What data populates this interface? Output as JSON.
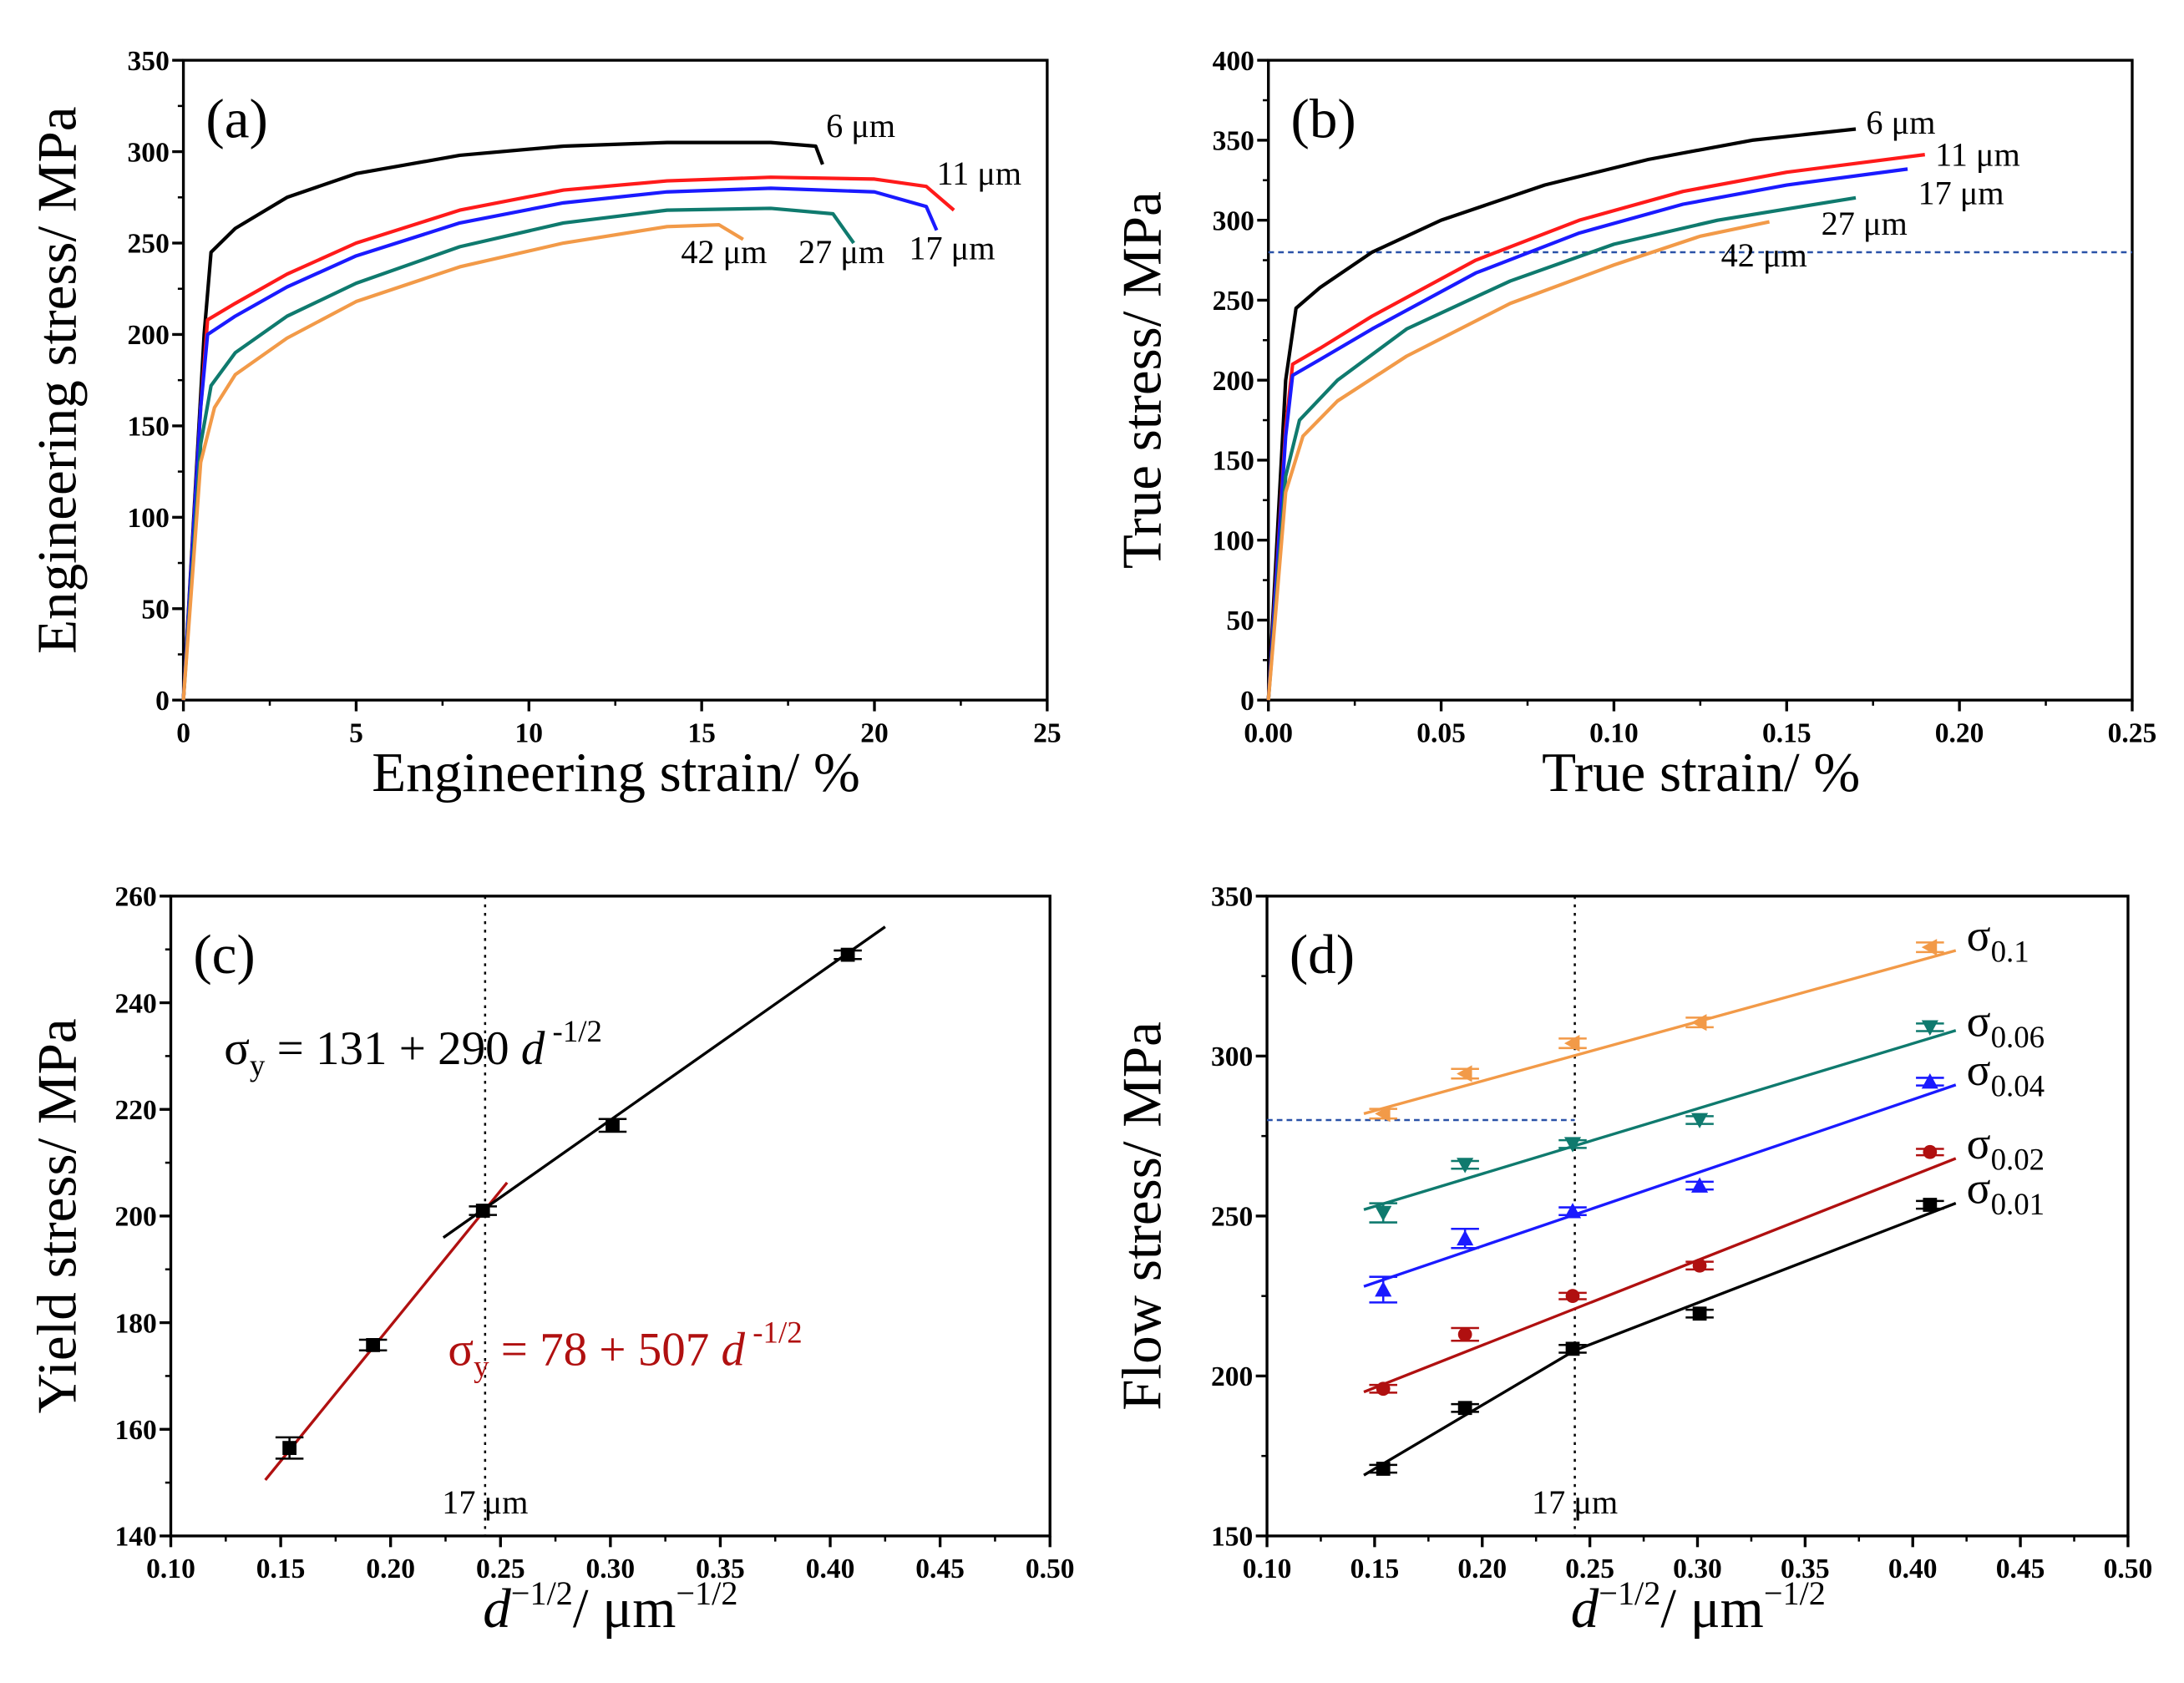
{
  "chart_data": [
    {
      "id": "a",
      "type": "line",
      "panel_label": "(a)",
      "xlabel": "Engineering strain/ %",
      "ylabel": "Engineering stress/ MPa",
      "xlim": [
        0,
        25
      ],
      "ylim": [
        0,
        350
      ],
      "xticks": [
        0,
        5,
        10,
        15,
        20,
        25
      ],
      "yticks": [
        0,
        50,
        100,
        150,
        200,
        250,
        300,
        350
      ],
      "xtick_fmt": 0,
      "series": [
        {
          "name": "6 μm",
          "color": "#000000",
          "points": [
            [
              0,
              0
            ],
            [
              0.6,
              200
            ],
            [
              0.8,
              245
            ],
            [
              1.5,
              258
            ],
            [
              3,
              275
            ],
            [
              5,
              288
            ],
            [
              8,
              298
            ],
            [
              11,
              303
            ],
            [
              14,
              305
            ],
            [
              17,
              305
            ],
            [
              18.3,
              303
            ],
            [
              18.5,
              293
            ]
          ]
        },
        {
          "name": "11 μm",
          "color": "#ff1a1a",
          "points": [
            [
              0,
              0
            ],
            [
              0.5,
              160
            ],
            [
              0.7,
              208
            ],
            [
              1.5,
              217
            ],
            [
              3,
              233
            ],
            [
              5,
              250
            ],
            [
              8,
              268
            ],
            [
              11,
              279
            ],
            [
              14,
              284
            ],
            [
              17,
              286
            ],
            [
              20,
              285
            ],
            [
              21.5,
              281
            ],
            [
              22.3,
              268
            ]
          ]
        },
        {
          "name": "17 μm",
          "color": "#1a1aff",
          "points": [
            [
              0,
              0
            ],
            [
              0.5,
              160
            ],
            [
              0.7,
              200
            ],
            [
              1.5,
              210
            ],
            [
              3,
              226
            ],
            [
              5,
              243
            ],
            [
              8,
              261
            ],
            [
              11,
              272
            ],
            [
              14,
              278
            ],
            [
              17,
              280
            ],
            [
              20,
              278
            ],
            [
              21.5,
              270
            ],
            [
              21.8,
              257
            ]
          ]
        },
        {
          "name": "27 μm",
          "color": "#0f7a6e",
          "points": [
            [
              0,
              0
            ],
            [
              0.5,
              140
            ],
            [
              0.8,
              172
            ],
            [
              1.5,
              190
            ],
            [
              3,
              210
            ],
            [
              5,
              228
            ],
            [
              8,
              248
            ],
            [
              11,
              261
            ],
            [
              14,
              268
            ],
            [
              17,
              269
            ],
            [
              18.8,
              266
            ],
            [
              19.4,
              250
            ]
          ]
        },
        {
          "name": "42 μm",
          "color": "#f29a48",
          "points": [
            [
              0,
              0
            ],
            [
              0.5,
              130
            ],
            [
              0.9,
              160
            ],
            [
              1.5,
              178
            ],
            [
              3,
              198
            ],
            [
              5,
              218
            ],
            [
              8,
              237
            ],
            [
              11,
              250
            ],
            [
              14,
              259
            ],
            [
              15.5,
              260
            ],
            [
              16.2,
              252
            ]
          ]
        }
      ],
      "annotations": [
        {
          "text": "6 μm",
          "x": 18.6,
          "y": 308
        },
        {
          "text": "11 μm",
          "x": 21.8,
          "y": 282
        },
        {
          "text": "17 μm",
          "x": 21.0,
          "y": 241
        },
        {
          "text": "27 μm",
          "x": 17.8,
          "y": 239
        },
        {
          "text": "42 μm",
          "x": 14.4,
          "y": 239
        }
      ]
    },
    {
      "id": "b",
      "type": "line",
      "panel_label": "(b)",
      "xlabel": "True strain/ %",
      "ylabel": "True stress/ MPa",
      "xlim": [
        0,
        0.25
      ],
      "ylim": [
        0,
        400
      ],
      "xticks": [
        0,
        0.05,
        0.1,
        0.15,
        0.2,
        0.25
      ],
      "yticks": [
        0,
        50,
        100,
        150,
        200,
        250,
        300,
        350,
        400
      ],
      "xtick_fmt": 2,
      "hline": 280,
      "series": [
        {
          "name": "6 μm",
          "color": "#000000",
          "points": [
            [
              0,
              0
            ],
            [
              0.005,
              200
            ],
            [
              0.008,
              245
            ],
            [
              0.015,
              258
            ],
            [
              0.03,
              280
            ],
            [
              0.05,
              300
            ],
            [
              0.08,
              322
            ],
            [
              0.11,
              338
            ],
            [
              0.14,
              350
            ],
            [
              0.17,
              357
            ]
          ]
        },
        {
          "name": "11 μm",
          "color": "#ff1a1a",
          "points": [
            [
              0,
              0
            ],
            [
              0.005,
              170
            ],
            [
              0.007,
              210
            ],
            [
              0.015,
              220
            ],
            [
              0.03,
              240
            ],
            [
              0.06,
              275
            ],
            [
              0.09,
              300
            ],
            [
              0.12,
              318
            ],
            [
              0.15,
              330
            ],
            [
              0.19,
              341
            ]
          ]
        },
        {
          "name": "17 μm",
          "color": "#1a1aff",
          "points": [
            [
              0,
              0
            ],
            [
              0.005,
              165
            ],
            [
              0.007,
              203
            ],
            [
              0.015,
              213
            ],
            [
              0.03,
              232
            ],
            [
              0.06,
              267
            ],
            [
              0.09,
              292
            ],
            [
              0.12,
              310
            ],
            [
              0.15,
              322
            ],
            [
              0.185,
              332
            ]
          ]
        },
        {
          "name": "27 μm",
          "color": "#0f7a6e",
          "points": [
            [
              0,
              0
            ],
            [
              0.005,
              140
            ],
            [
              0.009,
              175
            ],
            [
              0.02,
              200
            ],
            [
              0.04,
              232
            ],
            [
              0.07,
              262
            ],
            [
              0.1,
              285
            ],
            [
              0.13,
              300
            ],
            [
              0.17,
              314
            ]
          ]
        },
        {
          "name": "42 μm",
          "color": "#f29a48",
          "points": [
            [
              0,
              0
            ],
            [
              0.005,
              130
            ],
            [
              0.01,
              165
            ],
            [
              0.02,
              187
            ],
            [
              0.04,
              215
            ],
            [
              0.07,
              248
            ],
            [
              0.1,
              272
            ],
            [
              0.125,
              290
            ],
            [
              0.145,
              299
            ]
          ]
        }
      ],
      "annotations": [
        {
          "text": "6 μm",
          "x": 0.173,
          "y": 354
        },
        {
          "text": "11 μm",
          "x": 0.193,
          "y": 334
        },
        {
          "text": "17 μm",
          "x": 0.188,
          "y": 310
        },
        {
          "text": "27 μm",
          "x": 0.16,
          "y": 291
        },
        {
          "text": "42 μm",
          "x": 0.131,
          "y": 271
        }
      ]
    },
    {
      "id": "c",
      "type": "scatter",
      "panel_label": "(c)",
      "xlabel_parts": [
        "d",
        "−1/2",
        "/ μm",
        "−1/2"
      ],
      "ylabel": "Yield stress/ MPa",
      "xlim": [
        0.1,
        0.5
      ],
      "ylim": [
        140,
        260
      ],
      "xticks": [
        0.1,
        0.15,
        0.2,
        0.25,
        0.3,
        0.35,
        0.4,
        0.45,
        0.5
      ],
      "yticks": [
        140,
        160,
        180,
        200,
        220,
        240,
        260
      ],
      "xtick_fmt": 2,
      "vline": 0.243,
      "vline_label": "17 μm",
      "series": [
        {
          "name": "yield",
          "color": "#000000",
          "marker": "square",
          "x": [
            0.154,
            0.192,
            0.242,
            0.301,
            0.408
          ],
          "y": [
            156.5,
            175.8,
            201,
            217,
            249
          ],
          "err": [
            2,
            1,
            0.8,
            1.2,
            0.8
          ]
        }
      ],
      "fits": [
        {
          "color": "#b01010",
          "x": [
            0.143,
            0.253
          ],
          "intercept": 78,
          "slope": 507
        },
        {
          "color": "#000000",
          "x": [
            0.224,
            0.425
          ],
          "intercept": 131,
          "slope": 290
        }
      ],
      "equations": [
        {
          "sigma": "σ",
          "sub": "y",
          "body": " = 131 + 290 ",
          "d": "d",
          "sup": " -1/2",
          "color": "#000000"
        },
        {
          "sigma": "σ",
          "sub": "y",
          "body": " = 78 + 507 ",
          "d": "d",
          "sup": " -1/2",
          "color": "#b01010"
        }
      ]
    },
    {
      "id": "d",
      "type": "scatter",
      "panel_label": "(d)",
      "xlabel_parts": [
        "d",
        "−1/2",
        "/ μm",
        "−1/2"
      ],
      "ylabel": "Flow stress/ MPa",
      "xlim": [
        0.1,
        0.5
      ],
      "ylim": [
        150,
        350
      ],
      "xticks": [
        0.1,
        0.15,
        0.2,
        0.25,
        0.3,
        0.35,
        0.4,
        0.45,
        0.5
      ],
      "yticks": [
        150,
        200,
        250,
        300,
        350
      ],
      "xtick_fmt": 2,
      "vline": 0.243,
      "vline_label": "17 μm",
      "hline_partial": [
        280,
        0.243
      ],
      "series": [
        {
          "name": "σ",
          "sub": "0.1",
          "color": "#f29a48",
          "marker": "left",
          "x": [
            0.154,
            0.192,
            0.242,
            0.301,
            0.408
          ],
          "y": [
            282,
            294.5,
            304,
            310.5,
            334
          ],
          "err": [
            1.5,
            1.5,
            1.5,
            1.5,
            1.5
          ],
          "fit": [
            [
              0.145,
              282
            ],
            [
              0.42,
              333
            ]
          ]
        },
        {
          "name": "σ",
          "sub": "0.06",
          "color": "#0f7a6e",
          "marker": "down",
          "x": [
            0.154,
            0.192,
            0.242,
            0.301,
            0.408
          ],
          "y": [
            251,
            266,
            272.5,
            280,
            309
          ],
          "err": [
            3,
            1.2,
            1.2,
            1.2,
            1.2
          ],
          "fit": [
            [
              0.145,
              252
            ],
            [
              0.42,
              308
            ]
          ]
        },
        {
          "name": "σ",
          "sub": "0.04",
          "color": "#1a1aff",
          "marker": "up",
          "x": [
            0.154,
            0.192,
            0.242,
            0.301,
            0.408
          ],
          "y": [
            227,
            243,
            251.5,
            259.5,
            292
          ],
          "err": [
            4,
            3,
            1.2,
            1.2,
            1.2
          ],
          "fit": [
            [
              0.145,
              228
            ],
            [
              0.42,
              291
            ]
          ]
        },
        {
          "name": "σ",
          "sub": "0.02",
          "color": "#b01010",
          "marker": "circle",
          "x": [
            0.154,
            0.192,
            0.242,
            0.301,
            0.408
          ],
          "y": [
            196,
            213,
            225,
            234.5,
            270
          ],
          "err": [
            1.2,
            2,
            1,
            1.2,
            1
          ],
          "fit": [
            [
              0.145,
              195
            ],
            [
              0.42,
              268
            ]
          ]
        },
        {
          "name": "σ",
          "sub": "0.01",
          "color": "#000000",
          "marker": "square",
          "x": [
            0.154,
            0.192,
            0.242,
            0.301,
            0.408
          ],
          "y": [
            171,
            190,
            208.5,
            219.5,
            253.5
          ],
          "err": [
            1.2,
            1.2,
            1.2,
            1.2,
            1.2
          ],
          "fit": [
            [
              0.145,
              169
            ],
            [
              0.243,
              208
            ],
            [
              0.42,
              254
            ]
          ]
        }
      ]
    }
  ]
}
